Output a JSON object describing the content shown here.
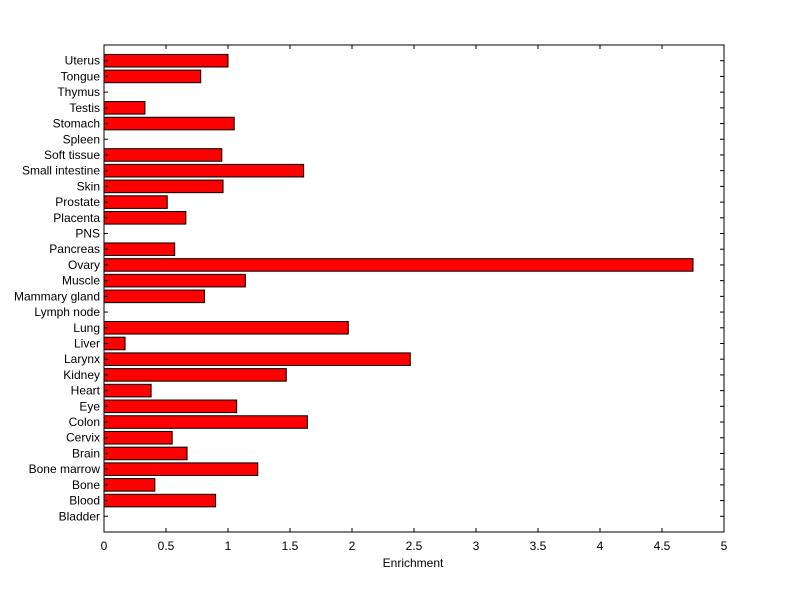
{
  "chart_data": {
    "type": "bar",
    "orientation": "horizontal",
    "title": "",
    "xlabel": "Enrichment",
    "ylabel": "",
    "xlim": [
      0,
      5
    ],
    "xticks": [
      "0",
      "0.5",
      "1",
      "1.5",
      "2",
      "2.5",
      "3",
      "3.5",
      "4",
      "4.5",
      "5"
    ],
    "grid": false,
    "legend": "none",
    "bar_color": "#ff0000",
    "categories": [
      "Bladder",
      "Blood",
      "Bone",
      "Bone marrow",
      "Brain",
      "Cervix",
      "Colon",
      "Eye",
      "Heart",
      "Kidney",
      "Larynx",
      "Liver",
      "Lung",
      "Lymph node",
      "Mammary gland",
      "Muscle",
      "Ovary",
      "Pancreas",
      "PNS",
      "Placenta",
      "Prostate",
      "Skin",
      "Small intestine",
      "Soft tissue",
      "Spleen",
      "Stomach",
      "Testis",
      "Thymus",
      "Tongue",
      "Uterus"
    ],
    "values": [
      0,
      0.9,
      0.41,
      1.24,
      0.67,
      0.55,
      1.64,
      1.07,
      0.38,
      1.47,
      2.47,
      0.17,
      1.97,
      0,
      0.81,
      1.14,
      4.75,
      0.57,
      0,
      0.66,
      0.51,
      0.96,
      1.61,
      0.95,
      0,
      1.05,
      0.33,
      0,
      0.78,
      1.0
    ]
  }
}
